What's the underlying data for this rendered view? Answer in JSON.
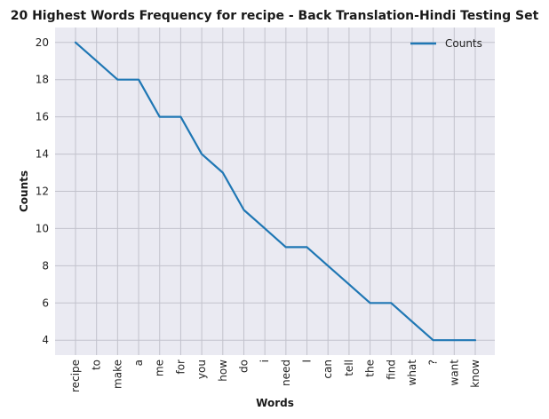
{
  "chart_data": {
    "type": "line",
    "title": "20 Highest Words Frequency for recipe - Back Translation-Hindi Testing Set",
    "xlabel": "Words",
    "ylabel": "Counts",
    "categories": [
      "recipe",
      "to",
      "make",
      "a",
      "me",
      "for",
      "you",
      "how",
      "do",
      "i",
      "need",
      "I",
      "can",
      "tell",
      "the",
      "find",
      "what",
      "?",
      "want",
      "know"
    ],
    "series": [
      {
        "name": "Counts",
        "values": [
          20,
          19,
          18,
          18,
          16,
          16,
          14,
          13,
          11,
          10,
          9,
          9,
          8,
          7,
          6,
          6,
          5,
          4,
          4,
          4
        ]
      }
    ],
    "yticks": [
      4,
      6,
      8,
      10,
      12,
      14,
      16,
      18,
      20
    ],
    "ylim": [
      3.2,
      20.8
    ],
    "grid": true,
    "legend": "top-right",
    "colors": {
      "line": "#1f77b4",
      "plot_background": "#eaeaf2",
      "grid": "#c2c2cc"
    }
  }
}
